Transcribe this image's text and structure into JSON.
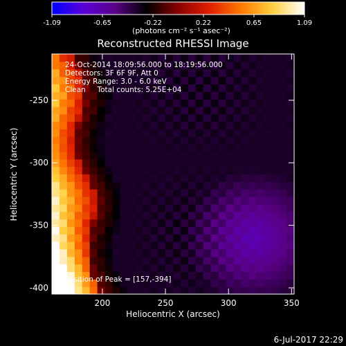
{
  "chart_data": {
    "type": "heatmap",
    "title": "Reconstructed RHESSI Image",
    "xlabel": "Heliocentric X (arcsec)",
    "ylabel": "Heliocentric Y (arcsec)",
    "xlim": [
      160,
      352
    ],
    "ylim": [
      -405,
      -213
    ],
    "x_ticks": [
      200,
      250,
      300,
      350
    ],
    "y_ticks": [
      -250,
      -300,
      -350,
      -400
    ],
    "colorbar": {
      "min": -1.09,
      "max": 1.09,
      "tick_labels": [
        "-1.09",
        "-0.65",
        "-0.22",
        "0.22",
        "0.65",
        "1.09"
      ],
      "unit_label": "(photons cm⁻² s⁻¹ asec⁻²)",
      "colors": [
        "#0000ff",
        "#5a00d8",
        "#5a0088",
        "#000000",
        "#8a0000",
        "#e02000",
        "#ff7a00",
        "#ffd040",
        "#ffffff"
      ]
    },
    "annotations": [
      "24-Oct-2014 18:09:56.000 to 18:19:56.000",
      "Detectors: 3F 6F 9F, Att 0",
      "Energy Range: 3.0 - 6.0 keV",
      "Clean     Total counts: 5.25E+04"
    ],
    "peak_label": "Position of Peak = [157,-394]",
    "peak": {
      "x": 157,
      "y": -394
    },
    "background_level": -0.35,
    "grid": false
  },
  "footer": {
    "date": "6-Jul-2017 22:29"
  }
}
